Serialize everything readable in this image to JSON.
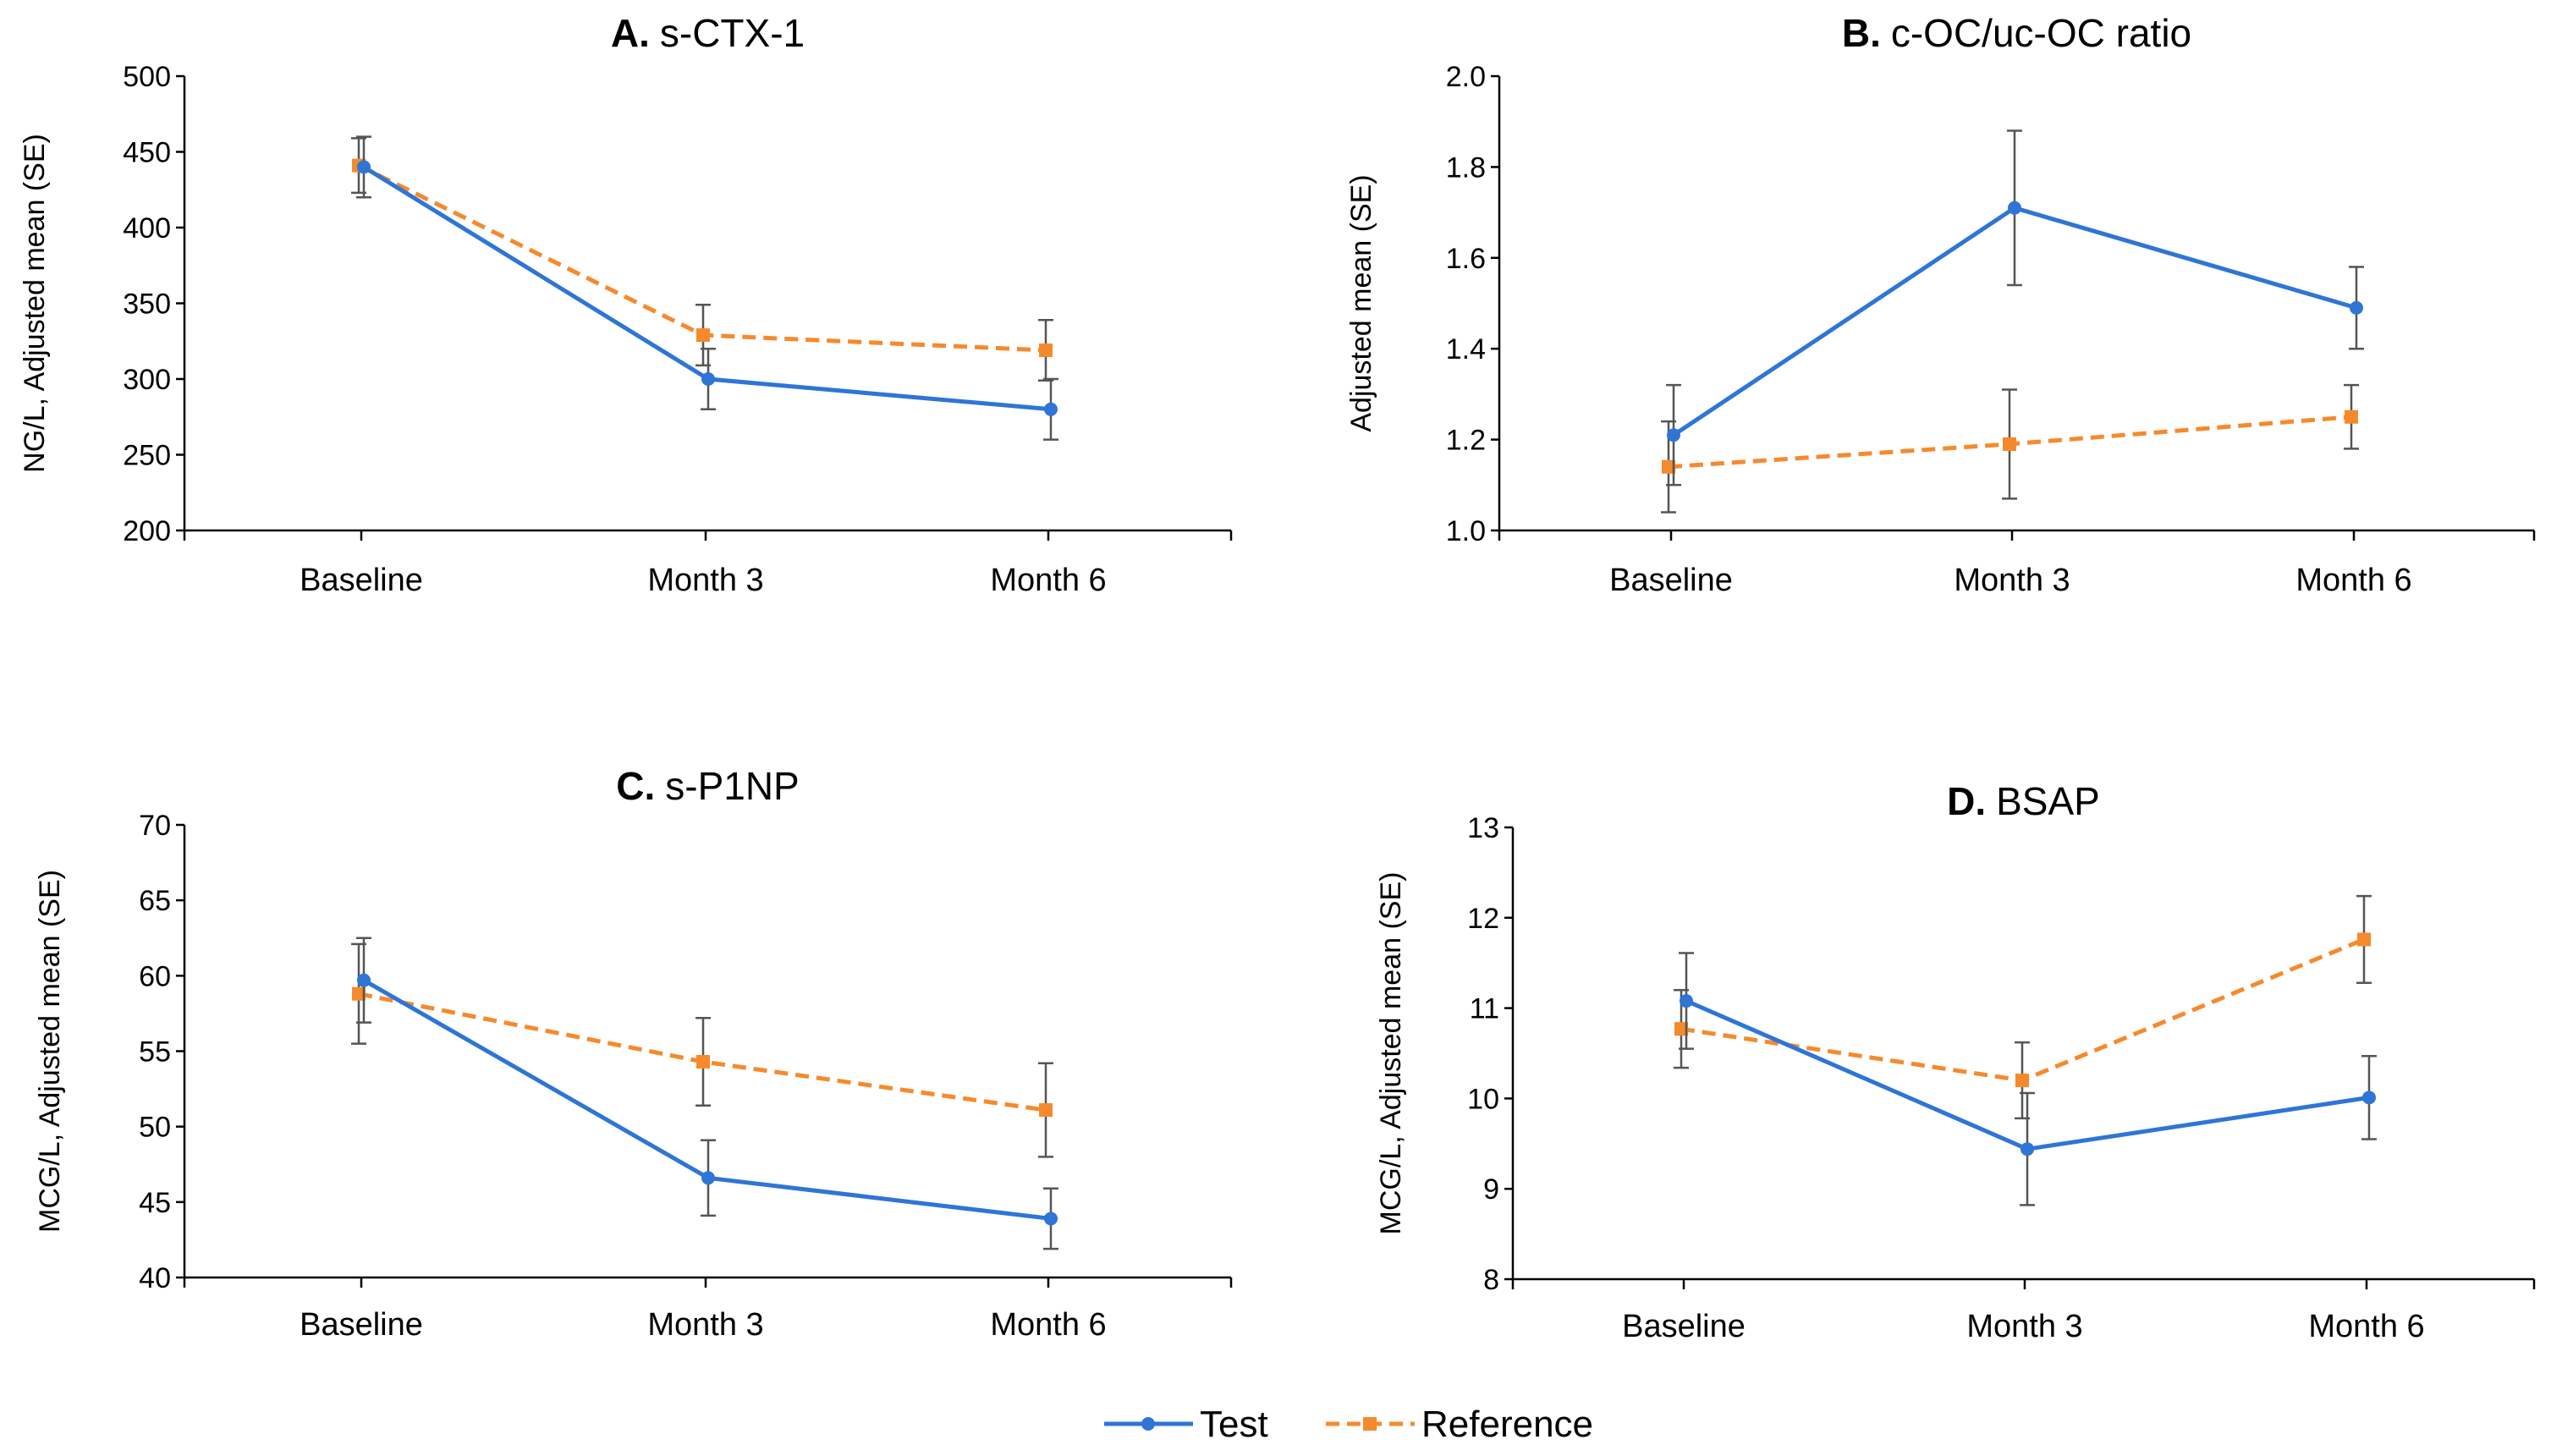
{
  "legend": [
    {
      "name": "Test",
      "color": "#2e75d6",
      "dash": false
    },
    {
      "name": "Reference",
      "color": "#f58a2d",
      "dash": true
    }
  ],
  "chart_data": [
    {
      "type": "line",
      "title_prefix": "A.",
      "title": "s-CTX-1",
      "ylabel": "NG/L, Adjusted mean (SE)",
      "categories": [
        "Baseline",
        "Month 3",
        "Month 6"
      ],
      "ylim": [
        200,
        500
      ],
      "yticks": [
        200,
        250,
        300,
        350,
        400,
        450,
        500
      ],
      "series": [
        {
          "name": "Test",
          "values": [
            440,
            300,
            280
          ],
          "se": [
            20,
            20,
            20
          ]
        },
        {
          "name": "Reference",
          "values": [
            441,
            329,
            319
          ],
          "se": [
            18,
            20,
            20
          ]
        }
      ]
    },
    {
      "type": "line",
      "title_prefix": "B.",
      "title": "c-OC/uc-OC ratio",
      "ylabel": "Adjusted mean (SE)",
      "categories": [
        "Baseline",
        "Month 3",
        "Month 6"
      ],
      "ylim": [
        1.0,
        2.0
      ],
      "yticks": [
        1.0,
        1.2,
        1.4,
        1.6,
        1.8,
        2.0
      ],
      "series": [
        {
          "name": "Test",
          "values": [
            1.21,
            1.71,
            1.49
          ],
          "se": [
            0.11,
            0.17,
            0.09
          ]
        },
        {
          "name": "Reference",
          "values": [
            1.14,
            1.19,
            1.25
          ],
          "se": [
            0.1,
            0.12,
            0.07
          ]
        }
      ]
    },
    {
      "type": "line",
      "title_prefix": "C.",
      "title": "s-P1NP",
      "ylabel": "MCG/L, Adjusted mean (SE)",
      "categories": [
        "Baseline",
        "Month 3",
        "Month 6"
      ],
      "ylim": [
        40,
        70
      ],
      "yticks": [
        40,
        45,
        50,
        55,
        60,
        65,
        70
      ],
      "series": [
        {
          "name": "Test",
          "values": [
            59.7,
            46.6,
            43.9
          ],
          "se": [
            2.8,
            2.5,
            2.0
          ]
        },
        {
          "name": "Reference",
          "values": [
            58.8,
            54.3,
            51.1
          ],
          "se": [
            3.3,
            2.9,
            3.1
          ]
        }
      ]
    },
    {
      "type": "line",
      "title_prefix": "D.",
      "title": "BSAP",
      "ylabel": "MCG/L, Adjusted mean  (SE)",
      "categories": [
        "Baseline",
        "Month 3",
        "Month 6"
      ],
      "ylim": [
        8,
        13
      ],
      "yticks": [
        8,
        9,
        10,
        11,
        12,
        13
      ],
      "series": [
        {
          "name": "Test",
          "values": [
            11.08,
            9.44,
            10.01
          ],
          "se": [
            0.53,
            0.62,
            0.46
          ]
        },
        {
          "name": "Reference",
          "values": [
            10.77,
            10.2,
            11.76
          ],
          "se": [
            0.43,
            0.42,
            0.48
          ]
        }
      ]
    }
  ]
}
